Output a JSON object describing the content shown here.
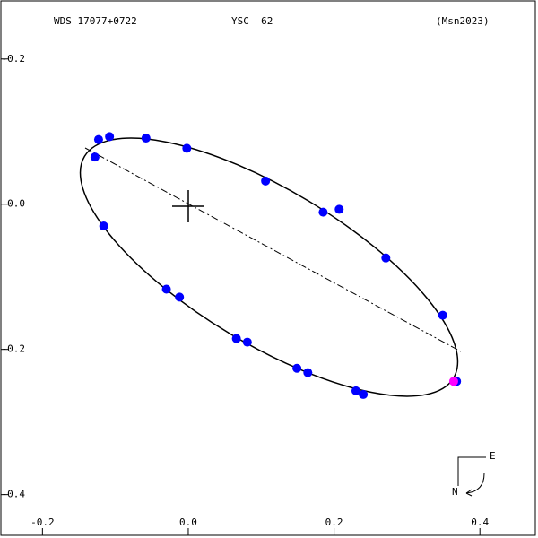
{
  "chart_data": {
    "type": "scatter",
    "title": "WDS 17077+0722",
    "subtitle": "YSC  62",
    "reference": "(Msn2023)",
    "compass": {
      "east": "E",
      "north": "N"
    },
    "xlim": [
      -0.257,
      0.476
    ],
    "ylim": [
      -0.456,
      0.28
    ],
    "xticks": [
      -0.2,
      {
        "value": 0,
        "label": "0.0"
      },
      0.2,
      0.4
    ],
    "yticks": [
      {
        "value": 0.2,
        "label": "-0.2"
      },
      {
        "value": 0,
        "label": "-0.0"
      },
      -0.2,
      -0.4
    ],
    "series": [
      {
        "color": "#0000ff",
        "x": [
          -0.123,
          -0.108,
          -0.058,
          -0.002,
          -0.128,
          -0.116,
          -0.03,
          -0.012,
          0.106,
          0.185,
          0.207,
          0.271,
          0.349,
          0.066,
          0.081,
          0.149,
          0.164,
          0.23,
          0.24,
          0.368
        ],
        "values": [
          0.089,
          0.093,
          0.091,
          0.077,
          0.065,
          -0.03,
          -0.117,
          -0.128,
          0.032,
          -0.011,
          -0.007,
          -0.074,
          -0.153,
          -0.185,
          -0.19,
          -0.226,
          -0.232,
          -0.257,
          -0.262,
          -0.244
        ]
      },
      {
        "color": "#ff00ff",
        "x": [
          0.364
        ],
        "values": [
          -0.244
        ]
      }
    ]
  }
}
